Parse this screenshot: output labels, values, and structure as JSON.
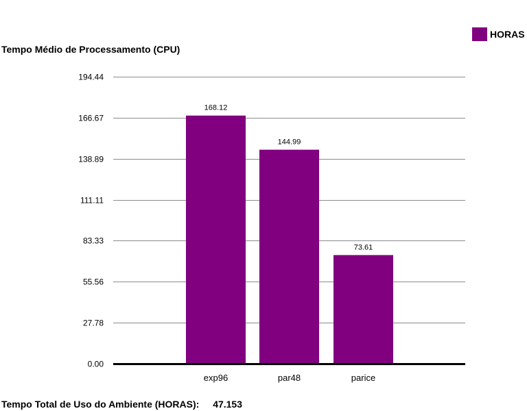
{
  "legend": {
    "label": "HORAS",
    "color": "#800080"
  },
  "footer": {
    "label": "Tempo Total de Uso do Ambiente (HORAS):",
    "value": "47.153"
  },
  "chart_data": {
    "type": "bar",
    "title": "Tempo Médio de Processamento (CPU)",
    "categories": [
      "exp96",
      "par48",
      "parice"
    ],
    "series": [
      {
        "name": "HORAS",
        "values": [
          168.12,
          144.99,
          73.61
        ],
        "color": "#800080"
      }
    ],
    "data_labels": [
      "168.12",
      "144.99",
      "73.61"
    ],
    "yticks": [
      0,
      27.78,
      55.56,
      83.33,
      111.11,
      138.89,
      166.67,
      194.44
    ],
    "ytick_labels": [
      "0.00",
      "27.78",
      "55.56",
      "83.33",
      "111.11",
      "138.89",
      "166.67",
      "194.44"
    ],
    "ylim": [
      0,
      194.44
    ],
    "grid": true,
    "legend_position": "top-right"
  }
}
